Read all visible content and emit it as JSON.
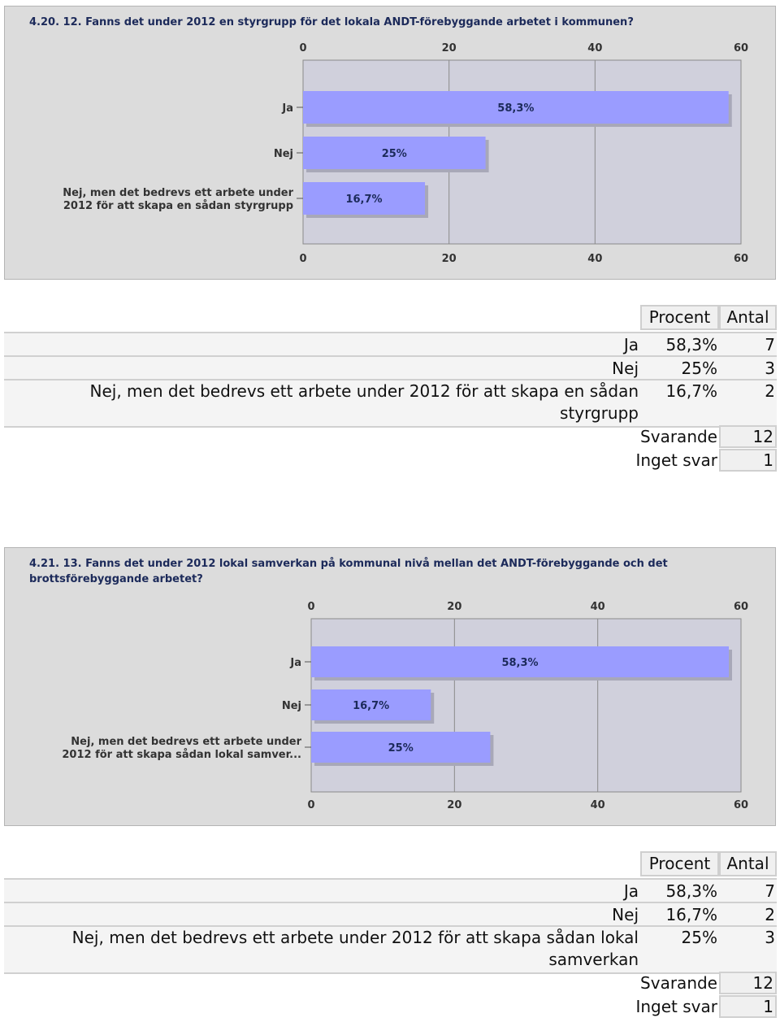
{
  "charts": [
    {
      "title": "4.20. 12. Fanns det under 2012 en styrgrupp för det lokala ANDT-förebyggande arbetet i kommunen?",
      "category_labels": [
        [
          "Ja"
        ],
        [
          "Nej"
        ],
        [
          "Nej, men det bedrevs ett arbete under",
          "2012 för att skapa en sådan styrgrupp"
        ]
      ],
      "bar_labels": [
        "58,3%",
        "25%",
        "16,7%"
      ],
      "tick_labels": [
        "0",
        "20",
        "40",
        "60"
      ]
    },
    {
      "title_lines": [
        "4.21. 13. Fanns det under 2012 lokal samverkan på kommunal nivå mellan det ANDT-förebyggande och det",
        "brottsförebyggande arbetet?"
      ],
      "category_labels": [
        [
          "Ja"
        ],
        [
          "Nej"
        ],
        [
          "Nej, men det bedrevs ett arbete under",
          "2012 för att skapa sådan lokal samver..."
        ]
      ],
      "bar_labels": [
        "58,3%",
        "16,7%",
        "25%"
      ],
      "tick_labels": [
        "0",
        "20",
        "40",
        "60"
      ]
    }
  ],
  "chart_data": [
    {
      "type": "bar",
      "title": "4.20. 12. Fanns det under 2012 en styrgrupp för det lokala ANDT-förebyggande arbetet i kommunen?",
      "categories": [
        "Ja",
        "Nej",
        "Nej, men det bedrevs ett arbete under 2012 för att skapa en sådan styrgrupp"
      ],
      "values": [
        58.3,
        25,
        16.7
      ],
      "xlim": [
        0,
        60
      ],
      "ticks": [
        0,
        20,
        40,
        60
      ],
      "orientation": "horizontal",
      "bar_color": "#9a9cff",
      "grid": true
    },
    {
      "type": "bar",
      "title": "4.21. 13. Fanns det under 2012 lokal samverkan på kommunal nivå mellan det ANDT-förebyggande och det brottsförebyggande arbetet?",
      "categories": [
        "Ja",
        "Nej",
        "Nej, men det bedrevs ett arbete under 2012 för att skapa sådan lokal samver..."
      ],
      "values": [
        58.3,
        16.7,
        25
      ],
      "xlim": [
        0,
        60
      ],
      "ticks": [
        0,
        20,
        40,
        60
      ],
      "orientation": "horizontal",
      "bar_color": "#9a9cff",
      "grid": true
    }
  ],
  "tables": [
    {
      "headers": {
        "percent": "Procent",
        "count": "Antal"
      },
      "rows": [
        {
          "label": "Ja",
          "percent": "58,3%",
          "count": "7"
        },
        {
          "label": "Nej",
          "percent": "25%",
          "count": "3"
        },
        {
          "label_line1": "Nej, men det bedrevs ett arbete under 2012 för att skapa en sådan",
          "label_line2": "styrgrupp",
          "percent": "16,7%",
          "count": "2"
        }
      ],
      "summary": [
        {
          "label": "Svarande",
          "value": "12"
        },
        {
          "label": "Inget svar",
          "value": "1"
        }
      ]
    },
    {
      "headers": {
        "percent": "Procent",
        "count": "Antal"
      },
      "rows": [
        {
          "label": "Ja",
          "percent": "58,3%",
          "count": "7"
        },
        {
          "label": "Nej",
          "percent": "16,7%",
          "count": "2"
        },
        {
          "label_line1": "Nej, men det bedrevs ett arbete under 2012 för att skapa sådan lokal",
          "label_line2": "samverkan",
          "percent": "25%",
          "count": "3"
        }
      ],
      "summary": [
        {
          "label": "Svarande",
          "value": "12"
        },
        {
          "label": "Inget svar",
          "value": "1"
        }
      ]
    }
  ],
  "colors": {
    "bar": "#9a9cff",
    "plot_bg": "#d0d0dc",
    "panel_bg": "#dcdcdc"
  }
}
